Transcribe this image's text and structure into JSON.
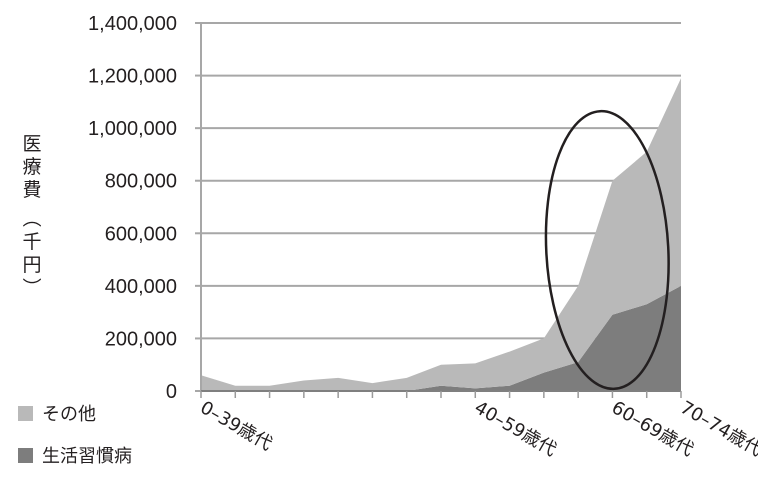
{
  "chart_data": {
    "type": "area",
    "ylabel": "医療費（千円）",
    "ylim": [
      0,
      1400000
    ],
    "yticks": [
      "1,400,000",
      "1,200,000",
      "1,000,000",
      "800,000",
      "600,000",
      "400,000",
      "200,000",
      "0"
    ],
    "x_tick_labels": [
      {
        "index": 0,
        "label": "0–39歳代"
      },
      {
        "index": 8,
        "label": "40–59歳代"
      },
      {
        "index": 12,
        "label": "60–69歳代"
      },
      {
        "index": 14,
        "label": "70–74歳代"
      }
    ],
    "grid": true,
    "stacked": true,
    "legend_position": "bottom-left",
    "series": [
      {
        "name": "生活習慣病",
        "color": "#7d7d7d",
        "values": [
          0,
          0,
          0,
          0,
          0,
          0,
          0,
          20000,
          10000,
          20000,
          70000,
          110000,
          290000,
          330000,
          400000
        ]
      },
      {
        "name": "その他",
        "color": "#b9b9b9",
        "values": [
          60000,
          20000,
          20000,
          40000,
          50000,
          30000,
          50000,
          80000,
          95000,
          130000,
          130000,
          290000,
          510000,
          580000,
          790000
        ]
      }
    ],
    "annotation": {
      "type": "ellipse",
      "around_index_range": [
        10,
        13
      ]
    }
  }
}
